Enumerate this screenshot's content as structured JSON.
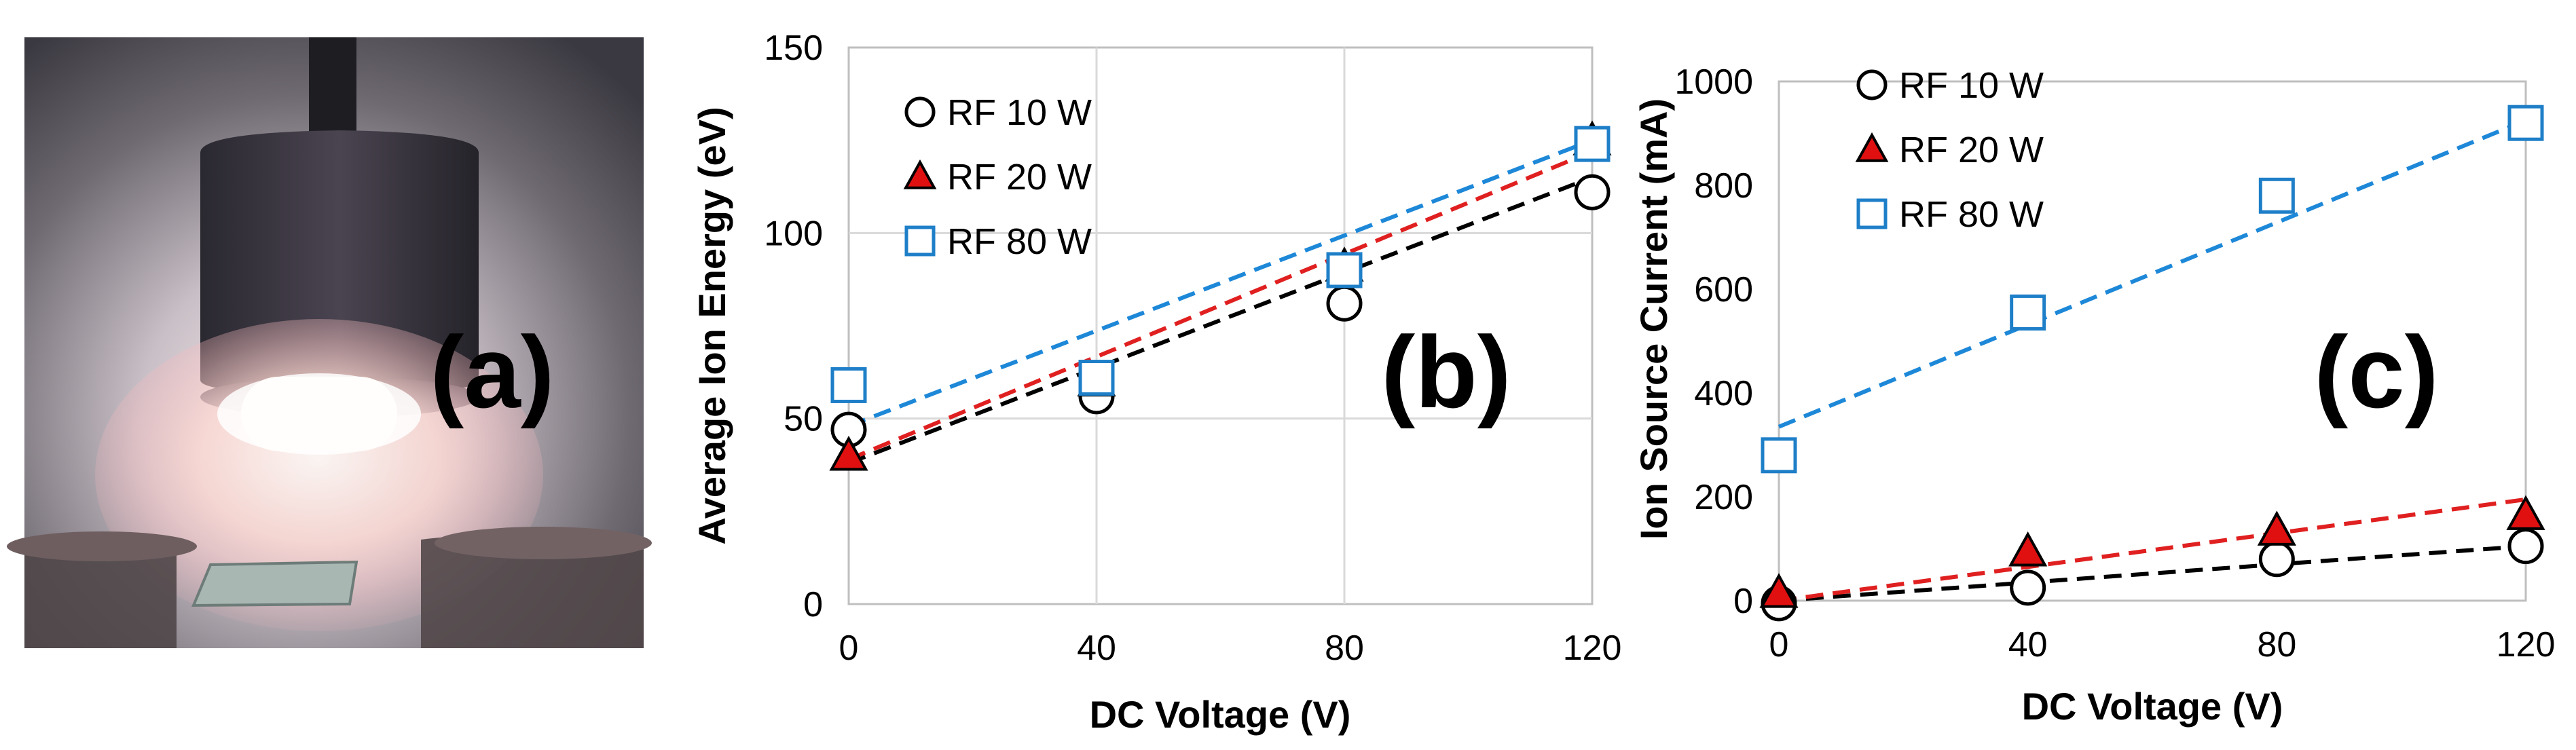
{
  "figure": {
    "panel_labels": [
      "(a)",
      "(b)",
      "(c)"
    ],
    "photo": {
      "label": "(a)"
    }
  },
  "colors": {
    "rf10": "#000000",
    "rf20_fill": "#e01010",
    "rf20_stroke": "#000000",
    "rf80": "#1e7fc8",
    "trend_rf10": "#000000",
    "trend_rf20": "#e02020",
    "trend_rf80": "#1e88d8",
    "grid": "#d9d9d9"
  },
  "chart_data": [
    {
      "id": "b",
      "type": "scatter",
      "panel_label": "(b)",
      "xlabel": "DC Voltage (V)",
      "ylabel": "Average Ion Energy (eV)",
      "xlim": [
        0,
        120
      ],
      "ylim": [
        0,
        150
      ],
      "xticks": [
        0,
        40,
        80,
        120
      ],
      "yticks": [
        0,
        50,
        100,
        150
      ],
      "grid": true,
      "legend_position": "top-left",
      "series": [
        {
          "name": "RF 10 W",
          "marker": "circle",
          "x": [
            0,
            40,
            80,
            120
          ],
          "y": [
            47,
            56,
            81,
            111
          ],
          "trend": [
            38,
            115
          ]
        },
        {
          "name": "RF 20 W",
          "marker": "triangle",
          "x": [
            0,
            40,
            80,
            120
          ],
          "y": [
            40,
            60,
            91,
            125
          ],
          "trend": [
            39,
            122
          ]
        },
        {
          "name": "RF 80 W",
          "marker": "square",
          "x": [
            0,
            40,
            80,
            120
          ],
          "y": [
            59,
            61,
            90,
            124
          ],
          "trend": [
            48,
            125
          ]
        }
      ]
    },
    {
      "id": "c",
      "type": "scatter",
      "panel_label": "(c)",
      "xlabel": "DC Voltage (V)",
      "ylabel": "Ion Source Current (mA)",
      "xlim": [
        0,
        120
      ],
      "ylim": [
        0,
        1000
      ],
      "xticks": [
        0,
        40,
        80,
        120
      ],
      "yticks": [
        0,
        200,
        400,
        600,
        800,
        1000
      ],
      "grid": false,
      "legend_position": "top-left",
      "series": [
        {
          "name": "RF 10 W",
          "marker": "circle",
          "x": [
            0,
            40,
            80,
            120
          ],
          "y": [
            -5,
            25,
            80,
            105
          ],
          "trend": [
            0,
            105
          ]
        },
        {
          "name": "RF 20 W",
          "marker": "triangle",
          "x": [
            0,
            40,
            80,
            120
          ],
          "y": [
            15,
            95,
            135,
            165
          ],
          "trend": [
            0,
            195
          ]
        },
        {
          "name": "RF 80 W",
          "marker": "square",
          "x": [
            0,
            40,
            80,
            120
          ],
          "y": [
            280,
            555,
            780,
            920
          ],
          "trend": [
            335,
            925
          ]
        }
      ]
    }
  ]
}
